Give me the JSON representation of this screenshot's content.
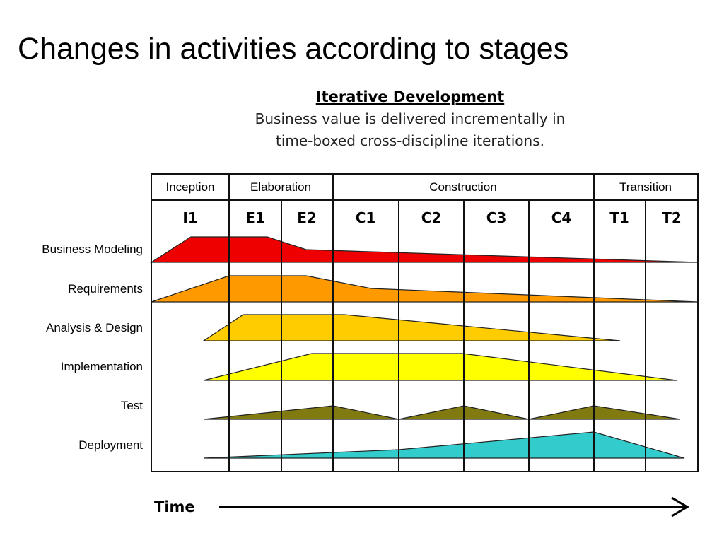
{
  "title": "Changes in activities according to stages",
  "diagram": {
    "heading": "Iterative Development",
    "description": [
      "Business value is delivered incrementally in",
      "time-boxed cross-discipline iterations."
    ],
    "phases": [
      "Inception",
      "Elaboration",
      "Construction",
      "Transition"
    ],
    "iterations": [
      "I1",
      "E1",
      "E2",
      "C1",
      "C2",
      "C3",
      "C4",
      "T1",
      "T2"
    ],
    "activities": [
      "Business Modeling",
      "Requirements",
      "Analysis & Design",
      "Implementation",
      "Test",
      "Deployment"
    ],
    "time_label": "Time"
  }
}
